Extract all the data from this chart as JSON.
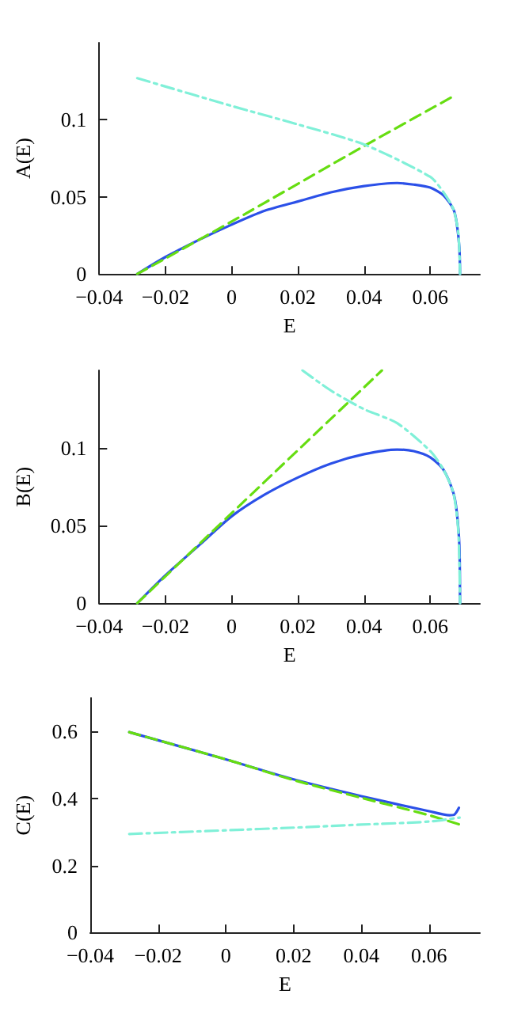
{
  "chart_data": [
    {
      "type": "line",
      "xlabel": "E",
      "ylabel": "A(E)",
      "xlim": [
        -0.04,
        0.075
      ],
      "ylim": [
        0,
        0.15
      ],
      "xticks": [
        -0.04,
        -0.02,
        0,
        0.02,
        0.04,
        0.06
      ],
      "yticks": [
        0,
        0.05,
        0.1
      ],
      "grid": false,
      "marker": "none",
      "series": [
        {
          "color": "#2b50e8",
          "line_style": "solid",
          "x": [
            -0.0285,
            -0.02,
            -0.01,
            0,
            0.01,
            0.02,
            0.03,
            0.04,
            0.05,
            0.055,
            0.06,
            0.064,
            0.067,
            0.068,
            0.0688,
            0.069
          ],
          "values": [
            0,
            0.011,
            0.022,
            0.032,
            0.041,
            0.047,
            0.053,
            0.057,
            0.059,
            0.058,
            0.056,
            0.051,
            0.042,
            0.033,
            0.017,
            0
          ]
        },
        {
          "color": "#66dd11",
          "line_style": "dashed",
          "x": [
            -0.0285,
            0,
            0.04,
            0.0676
          ],
          "values": [
            0,
            0.034,
            0.083,
            0.116
          ]
        },
        {
          "color": "#80f0d8",
          "line_style": "dashdot",
          "x": [
            -0.0285,
            0,
            0.02,
            0.04,
            0.06,
            0.064,
            0.067,
            0.0685,
            0.069
          ],
          "values": [
            0.127,
            0.109,
            0.097,
            0.084,
            0.063,
            0.053,
            0.042,
            0.026,
            0
          ]
        }
      ]
    },
    {
      "type": "line",
      "xlabel": "E",
      "ylabel": "B(E)",
      "xlim": [
        -0.04,
        0.075
      ],
      "ylim": [
        0,
        0.15
      ],
      "xticks": [
        -0.04,
        -0.02,
        0,
        0.02,
        0.04,
        0.06
      ],
      "yticks": [
        0,
        0.05,
        0.1
      ],
      "grid": false,
      "marker": "none",
      "series": [
        {
          "color": "#2b50e8",
          "line_style": "solid",
          "x": [
            -0.0285,
            -0.02,
            -0.01,
            0,
            0.01,
            0.02,
            0.03,
            0.04,
            0.05,
            0.055,
            0.06,
            0.064,
            0.067,
            0.068,
            0.0688,
            0.069
          ],
          "values": [
            0,
            0.018,
            0.037,
            0.056,
            0.07,
            0.081,
            0.09,
            0.096,
            0.099,
            0.098,
            0.094,
            0.086,
            0.071,
            0.059,
            0.037,
            0
          ]
        },
        {
          "color": "#66dd11",
          "line_style": "dashed",
          "x": [
            -0.0285,
            0,
            0.0454
          ],
          "values": [
            0,
            0.058,
            0.15
          ]
        },
        {
          "color": "#80f0d8",
          "line_style": "dashdot",
          "x": [
            0.0214,
            0.03,
            0.04,
            0.05,
            0.06,
            0.064,
            0.067,
            0.0685,
            0.069
          ],
          "values": [
            0.15,
            0.137,
            0.125,
            0.116,
            0.098,
            0.086,
            0.071,
            0.046,
            0
          ]
        }
      ]
    },
    {
      "type": "line",
      "xlabel": "E",
      "ylabel": "C(E)",
      "xlim": [
        -0.04,
        0.075
      ],
      "ylim": [
        0,
        0.7
      ],
      "xticks": [
        -0.04,
        -0.02,
        0,
        0.02,
        0.04,
        0.06
      ],
      "yticks": [
        0,
        0.2,
        0.4,
        0.6
      ],
      "grid": false,
      "marker": "none",
      "series": [
        {
          "color": "#2b50e8",
          "line_style": "solid",
          "x": [
            -0.0285,
            0,
            0.02,
            0.04,
            0.06,
            0.066,
            0.0675,
            0.0688
          ],
          "values": [
            0.598,
            0.517,
            0.457,
            0.407,
            0.362,
            0.35,
            0.352,
            0.372
          ]
        },
        {
          "color": "#66dd11",
          "line_style": "dashed",
          "x": [
            -0.0285,
            0,
            0.02,
            0.04,
            0.06,
            0.0694
          ],
          "values": [
            0.598,
            0.517,
            0.455,
            0.402,
            0.35,
            0.321
          ]
        },
        {
          "color": "#80f0d8",
          "line_style": "dashdot",
          "x": [
            -0.0285,
            0,
            0.02,
            0.04,
            0.06,
            0.069
          ],
          "values": [
            0.294,
            0.305,
            0.313,
            0.322,
            0.331,
            0.343
          ]
        }
      ]
    }
  ]
}
